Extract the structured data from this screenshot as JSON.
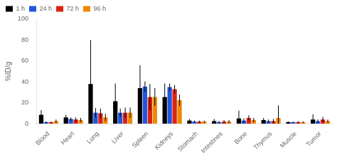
{
  "chart_data": {
    "type": "bar",
    "ylabel": "%ID/g",
    "categories": [
      "Blood",
      "Heart",
      "Lung",
      "Liver",
      "Spleen",
      "Kidneys",
      "Stomach",
      "Intestines",
      "Bone",
      "Thymus",
      "Muscle",
      "Tumor"
    ],
    "series": [
      {
        "name": "1 h",
        "color": "#000000",
        "values": [
          8.5,
          6.0,
          38.0,
          21.5,
          34.0,
          25.5,
          3.0,
          2.5,
          5.0,
          3.5,
          1.5,
          4.0
        ],
        "errors": [
          4.5,
          2.5,
          42.0,
          17.0,
          22.0,
          13.0,
          1.5,
          2.0,
          7.5,
          2.0,
          0.8,
          5.0
        ]
      },
      {
        "name": "24 h",
        "color": "#2255dd",
        "values": [
          1.5,
          4.5,
          10.5,
          10.5,
          35.5,
          35.0,
          2.0,
          1.5,
          3.0,
          2.5,
          1.5,
          2.5
        ],
        "errors": [
          0.8,
          1.5,
          4.5,
          4.0,
          5.0,
          3.5,
          1.0,
          1.0,
          2.0,
          1.5,
          0.5,
          1.5
        ]
      },
      {
        "name": "72 h",
        "color": "#dd2211",
        "values": [
          1.5,
          4.0,
          10.0,
          10.5,
          25.5,
          33.0,
          2.0,
          2.0,
          5.5,
          2.5,
          1.5,
          4.0
        ],
        "errors": [
          0.5,
          2.0,
          4.5,
          5.0,
          12.5,
          4.0,
          1.0,
          1.5,
          2.5,
          2.0,
          1.0,
          2.5
        ]
      },
      {
        "name": "96 h",
        "color": "#ee8800",
        "values": [
          2.5,
          3.5,
          6.0,
          10.5,
          25.5,
          22.5,
          2.0,
          2.0,
          3.5,
          5.5,
          1.5,
          2.5
        ],
        "errors": [
          1.5,
          2.0,
          3.5,
          5.0,
          8.5,
          5.5,
          1.0,
          1.5,
          2.0,
          12.0,
          0.8,
          1.5
        ]
      }
    ],
    "ylim": [
      0,
      100
    ],
    "yticks": [
      0,
      20,
      40,
      60,
      80,
      100
    ],
    "grid": false,
    "legend": "upper left"
  }
}
